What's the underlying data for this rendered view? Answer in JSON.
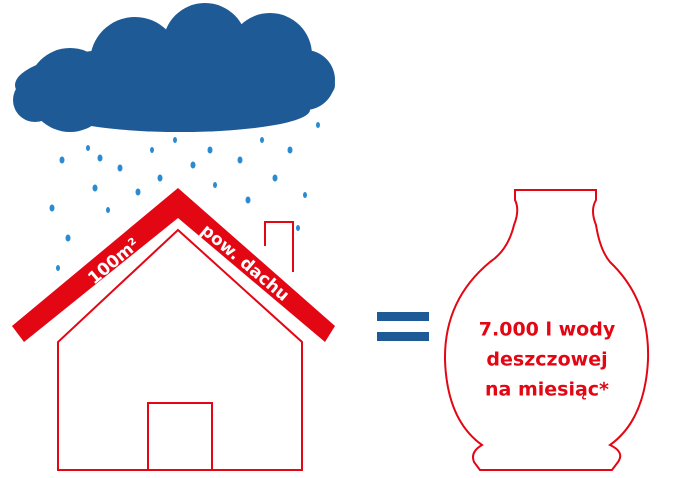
{
  "roof": {
    "area": "100m²",
    "label": "pow. dachu"
  },
  "tank": {
    "lines": [
      "7.000 l wody",
      "deszczowej",
      "na miesiąc*"
    ]
  }
}
